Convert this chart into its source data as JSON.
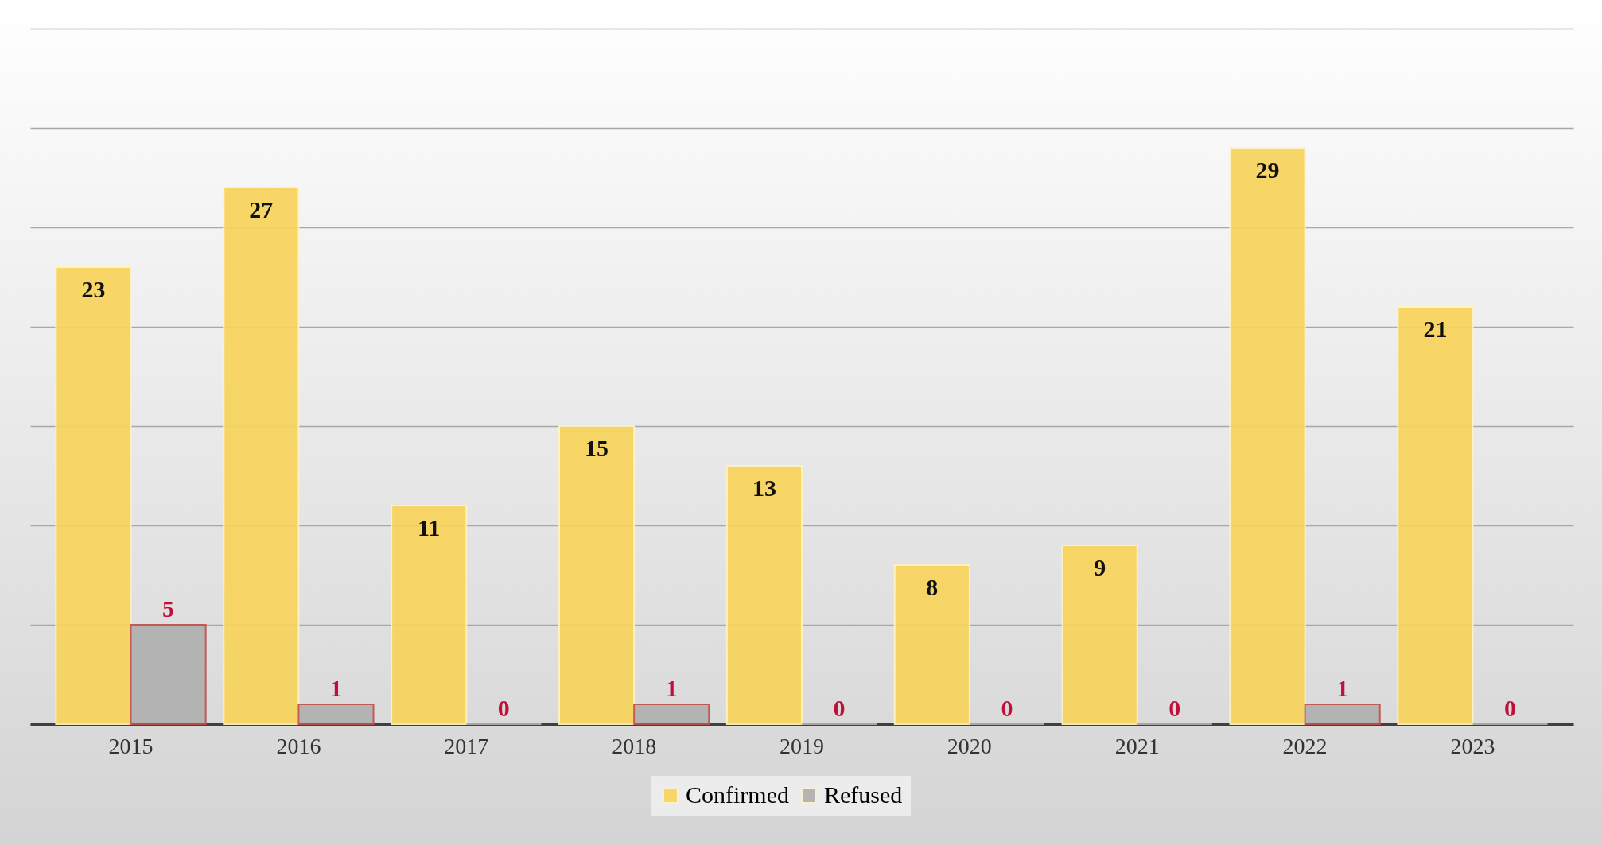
{
  "chart_data": {
    "type": "bar",
    "categories": [
      "2015",
      "2016",
      "2017",
      "2018",
      "2019",
      "2020",
      "2021",
      "2022",
      "2023"
    ],
    "series": [
      {
        "name": "Confirmed",
        "color": "#f8d45c",
        "values": [
          23,
          27,
          11,
          15,
          13,
          8,
          9,
          29,
          21
        ]
      },
      {
        "name": "Refused",
        "color": "#b0b0b0",
        "values": [
          5,
          1,
          0,
          1,
          0,
          0,
          0,
          1,
          0
        ]
      }
    ],
    "ylim": [
      0,
      35
    ],
    "yticks": [
      {
        "value": 0,
        "label": null
      },
      {
        "value": 5,
        "label": null
      },
      {
        "value": 10,
        "label": null
      },
      {
        "value": 15,
        "label": null
      },
      {
        "value": 20,
        "label": null
      },
      {
        "value": 25,
        "label": null
      },
      {
        "value": 30,
        "label": null
      },
      {
        "value": 35,
        "label": null
      }
    ],
    "tick_labels": "x",
    "grid": "y",
    "legend": "bottom",
    "data_labels": true
  }
}
